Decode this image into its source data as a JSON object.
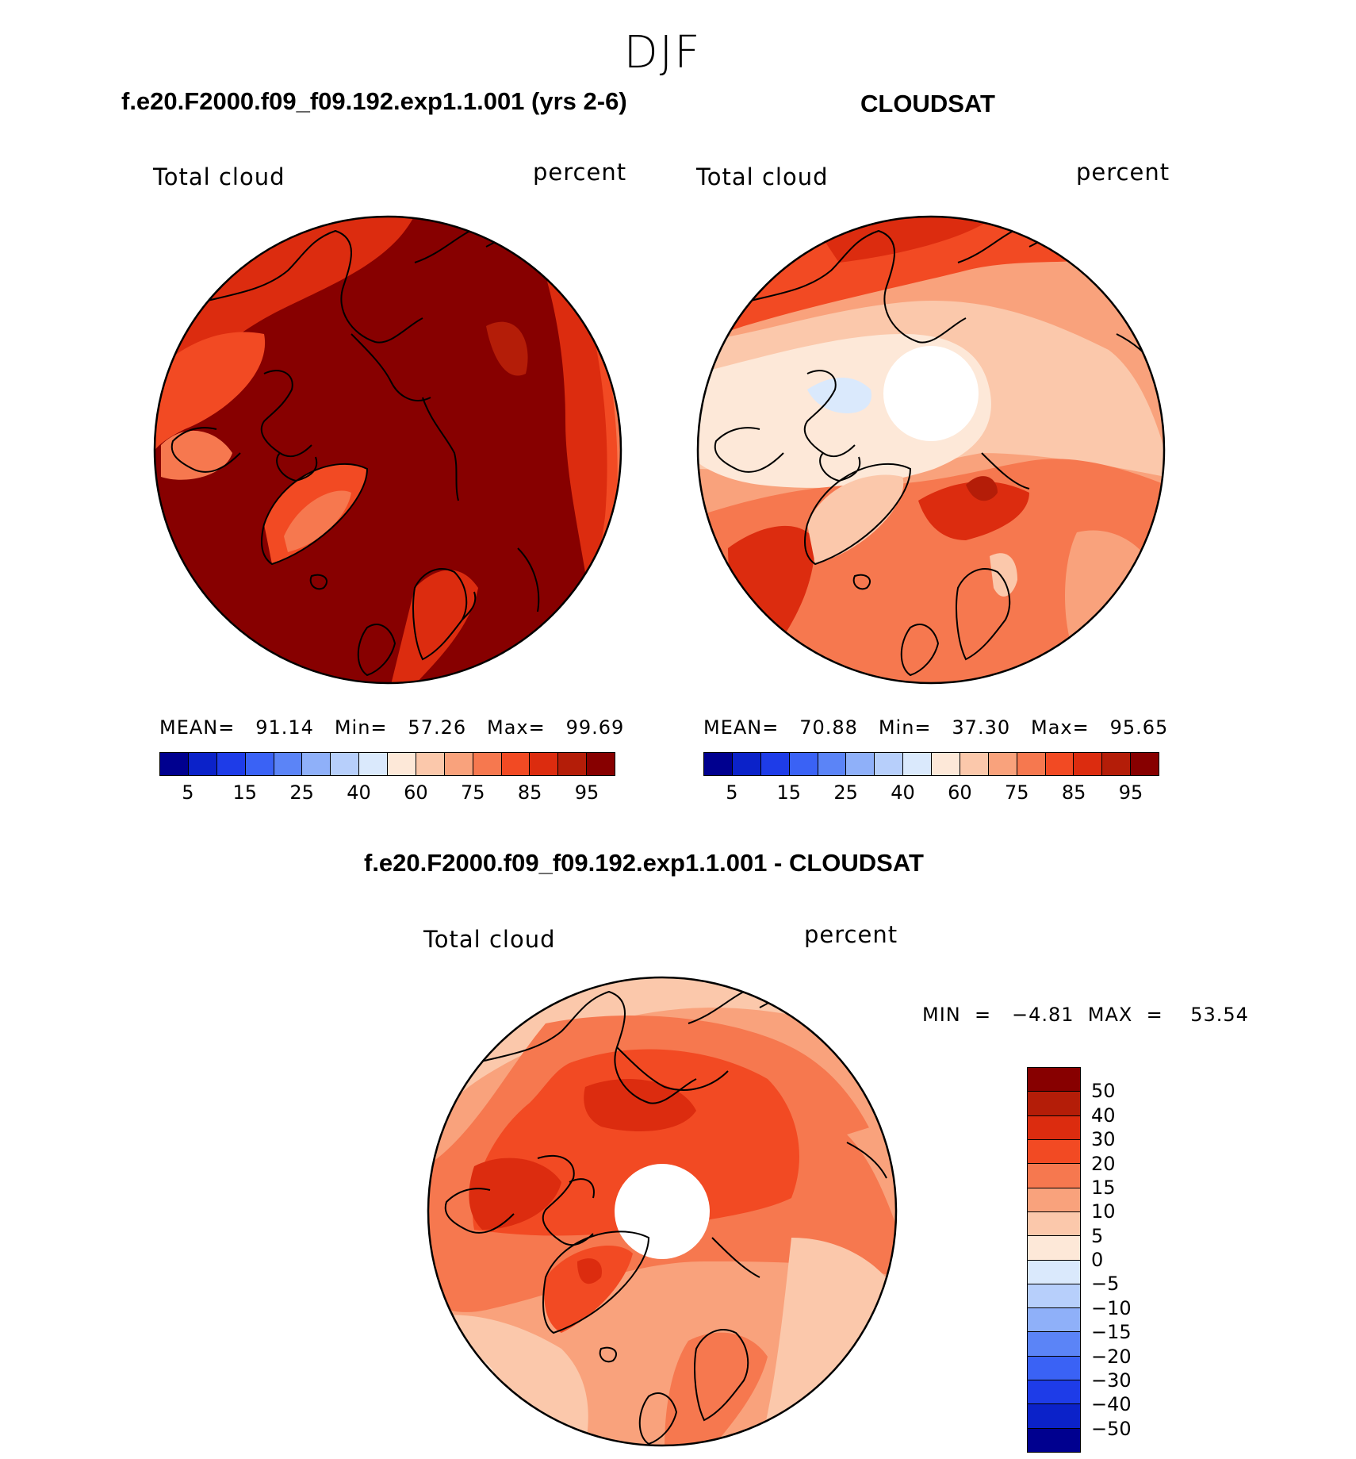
{
  "figure": {
    "title": "DJF"
  },
  "panels": {
    "model": {
      "title": "f.e20.F2000.f09_f09.192.exp1.1.001 (yrs 2-6)",
      "left_label": "Total cloud",
      "right_label": "percent",
      "stats": "MEAN=   91.14   Min=   57.26   Max=   99.69"
    },
    "obs": {
      "title": "CLOUDSAT",
      "left_label": "Total cloud",
      "right_label": "percent",
      "stats": "MEAN=   70.88   Min=   37.30   Max=   95.65"
    },
    "diff": {
      "title": "f.e20.F2000.f09_f09.192.exp1.1.001 - CLOUDSAT",
      "left_label": "Total cloud",
      "right_label": "percent",
      "minmax": "MIN  =   −4.81  MAX  =    53.54"
    }
  },
  "colorbar_abs": {
    "colors": [
      "#00008f",
      "#0b22c9",
      "#1e3ce8",
      "#3a62f5",
      "#5b84f7",
      "#8fb0f9",
      "#b7cffb",
      "#dae9fc",
      "#fde8d8",
      "#fbc8ab",
      "#f9a27c",
      "#f6784f",
      "#f24a23",
      "#dc2c0f",
      "#b41d08",
      "#870000"
    ],
    "tick_labels": [
      "5",
      "15",
      "25",
      "40",
      "60",
      "75",
      "85",
      "95"
    ]
  },
  "colorbar_diff": {
    "colors_top_to_bottom": [
      "#870000",
      "#b41d08",
      "#dc2c0f",
      "#f24a23",
      "#f6784f",
      "#f9a27c",
      "#fbc8ab",
      "#fde8d8",
      "#dae9fc",
      "#b7cffb",
      "#8fb0f9",
      "#5b84f7",
      "#3a62f5",
      "#1e3ce8",
      "#0b22c9",
      "#00008f"
    ],
    "tick_labels": [
      "50",
      "40",
      "30",
      "20",
      "15",
      "10",
      "5",
      "0",
      "−5",
      "−10",
      "−15",
      "−20",
      "−30",
      "−40",
      "−50"
    ]
  },
  "colors": {
    "model_base": "#870000",
    "obs_base": "#f9a27c",
    "diff_base": "#f6784f",
    "missing": "#ffffff",
    "coast": "#000000"
  }
}
